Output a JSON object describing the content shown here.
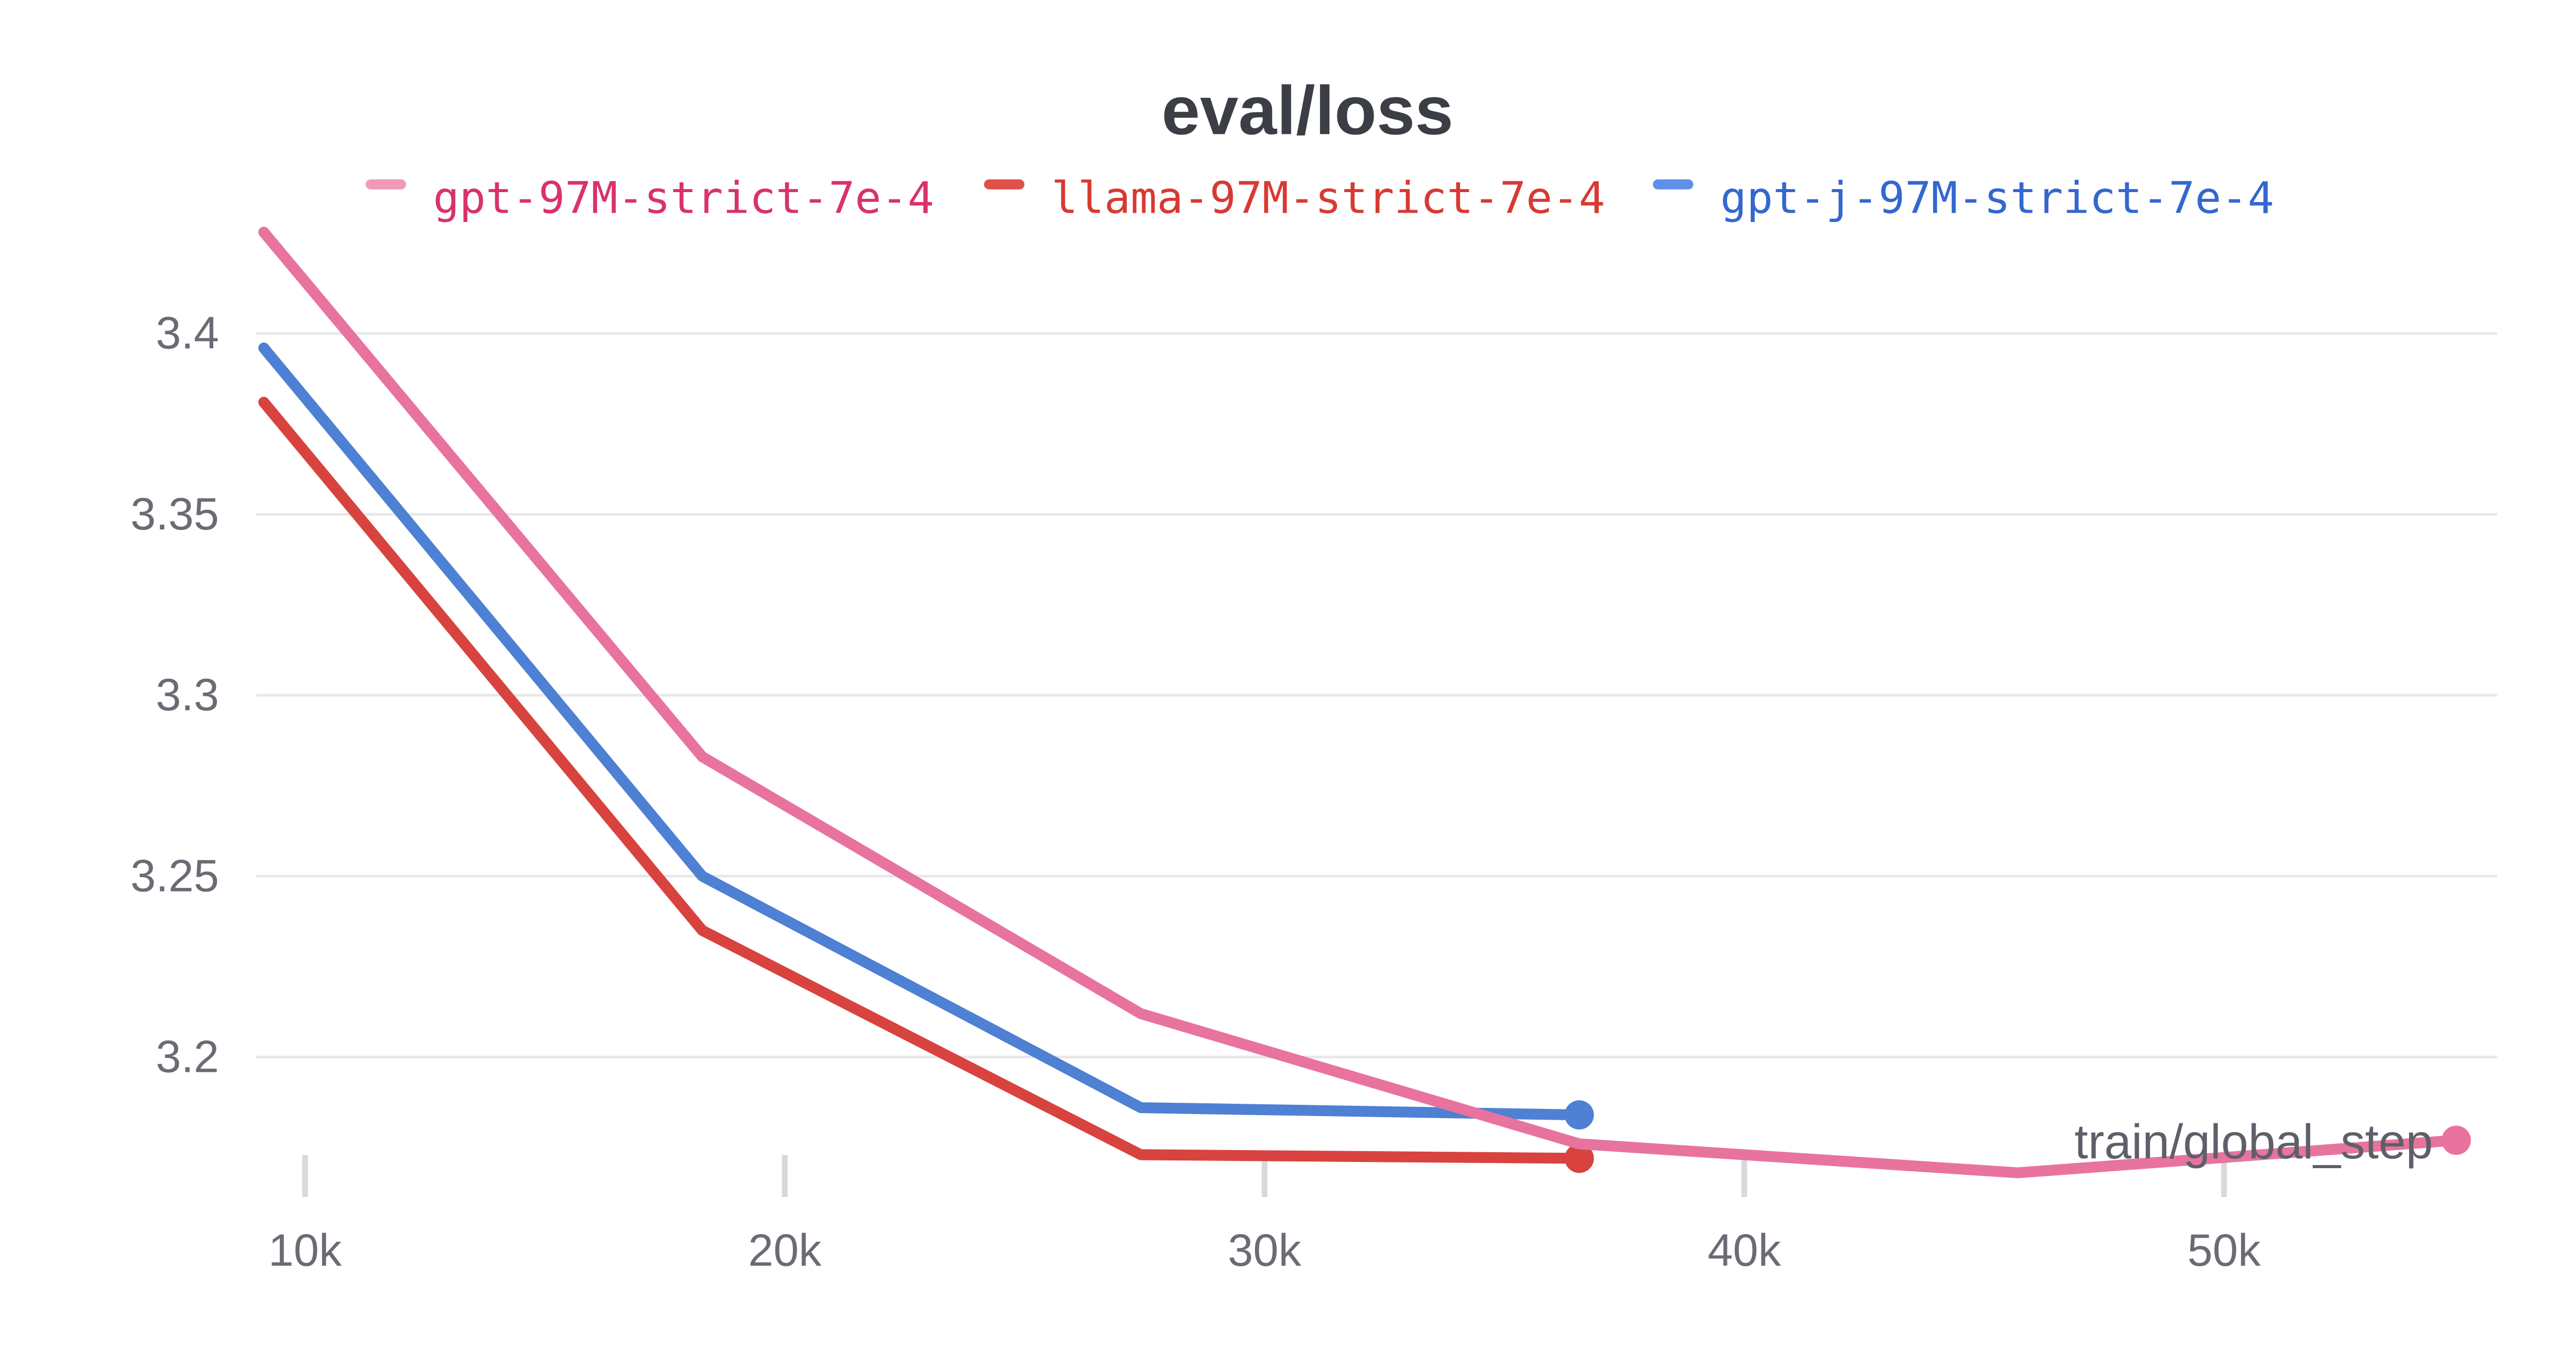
{
  "page": {
    "background": "#ffffff"
  },
  "chart_data": {
    "type": "line",
    "title": "eval/loss",
    "xlabel": "train/global_step",
    "ylabel": "",
    "grid": "horizontal-only",
    "legend_position": "top-center",
    "background_color": "#ffffff",
    "title_color": "#3b3e44",
    "axis_text_color": "#6b6b75",
    "xlabel_color": "#5f5f6a",
    "grid_color": "#e8e8ea",
    "tick_color": "#d9d9dc",
    "xlim": [
      8980,
      55690
    ],
    "ylim": [
      3.1627,
      3.4324
    ],
    "x_ticks": [
      {
        "value": 10000,
        "label": "10k"
      },
      {
        "value": 20000,
        "label": "20k"
      },
      {
        "value": 30000,
        "label": "30k"
      },
      {
        "value": 40000,
        "label": "40k"
      },
      {
        "value": 50000,
        "label": "50k"
      }
    ],
    "y_ticks": [
      {
        "value": 3.4,
        "label": "3.4"
      },
      {
        "value": 3.35,
        "label": "3.35"
      },
      {
        "value": 3.3,
        "label": "3.3"
      },
      {
        "value": 3.25,
        "label": "3.25"
      },
      {
        "value": 3.2,
        "label": "3.2"
      }
    ],
    "series": [
      {
        "name": "gpt-97M-strict-7e-4",
        "line_color": "#e8739e",
        "swatch_color": "#f09ab8",
        "text_color": "#d93268",
        "x": [
          9140,
          18280,
          27420,
          36560,
          45700,
          54840
        ],
        "y": [
          3.428,
          3.283,
          3.212,
          3.176,
          3.168,
          3.177
        ],
        "end_dot": true
      },
      {
        "name": "llama-97M-strict-7e-4",
        "line_color": "#d8433f",
        "swatch_color": "#e0504b",
        "text_color": "#d73a32",
        "x": [
          9140,
          18280,
          27420,
          36560
        ],
        "y": [
          3.381,
          3.235,
          3.173,
          3.172
        ],
        "end_dot": true
      },
      {
        "name": "gpt-j-97M-strict-7e-4",
        "line_color": "#4e80d3",
        "swatch_color": "#5f8fe8",
        "text_color": "#3467cf",
        "x": [
          9140,
          18280,
          27420,
          36560
        ],
        "y": [
          3.396,
          3.25,
          3.186,
          3.184
        ],
        "end_dot": true
      }
    ]
  }
}
